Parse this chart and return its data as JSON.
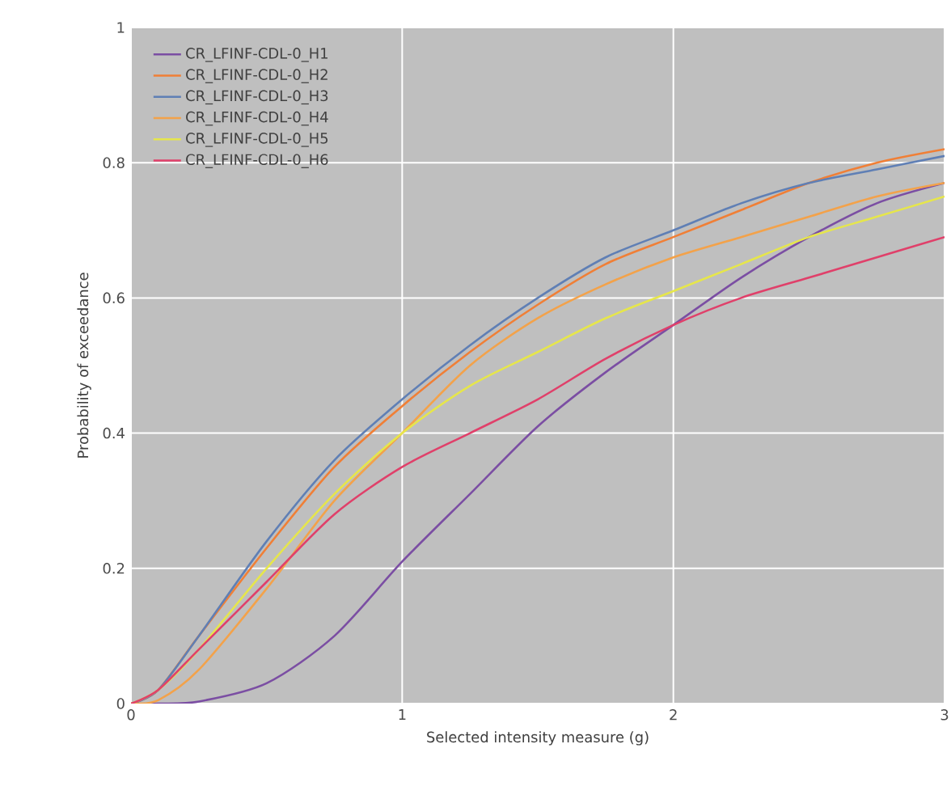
{
  "chart_data": {
    "type": "line",
    "xlabel": "Selected intensity measure (g)",
    "ylabel": "Probability of exceedance",
    "x": [
      0,
      0.1,
      0.25,
      0.5,
      0.75,
      1,
      1.25,
      1.5,
      1.75,
      2,
      2.25,
      2.5,
      2.75,
      3
    ],
    "series": [
      {
        "name": "CR_LFINF-CDL-0_H1",
        "color": "#7b4ea3",
        "values": [
          0,
          0,
          0.003,
          0.03,
          0.1,
          0.21,
          0.31,
          0.41,
          0.49,
          0.56,
          0.63,
          0.69,
          0.74,
          0.77
        ]
      },
      {
        "name": "CR_LFINF-CDL-0_H2",
        "color": "#f07f36",
        "values": [
          0,
          0.02,
          0.1,
          0.23,
          0.35,
          0.44,
          0.52,
          0.59,
          0.65,
          0.69,
          0.73,
          0.77,
          0.8,
          0.82
        ]
      },
      {
        "name": "CR_LFINF-CDL-0_H3",
        "color": "#5f7fb5",
        "values": [
          0,
          0.02,
          0.1,
          0.24,
          0.36,
          0.45,
          0.53,
          0.6,
          0.66,
          0.7,
          0.74,
          0.77,
          0.79,
          0.81
        ]
      },
      {
        "name": "CR_LFINF-CDL-0_H4",
        "color": "#f3a24a",
        "values": [
          0,
          0.005,
          0.05,
          0.17,
          0.3,
          0.4,
          0.5,
          0.57,
          0.62,
          0.66,
          0.69,
          0.72,
          0.75,
          0.77
        ]
      },
      {
        "name": "CR_LFINF-CDL-0_H5",
        "color": "#e6e64b",
        "values": [
          0,
          0.02,
          0.08,
          0.2,
          0.31,
          0.4,
          0.47,
          0.52,
          0.57,
          0.61,
          0.65,
          0.69,
          0.72,
          0.75
        ]
      },
      {
        "name": "CR_LFINF-CDL-0_H6",
        "color": "#e0406a",
        "values": [
          0,
          0.02,
          0.08,
          0.18,
          0.28,
          0.35,
          0.4,
          0.45,
          0.51,
          0.56,
          0.6,
          0.63,
          0.66,
          0.69
        ]
      }
    ],
    "xlim": [
      0,
      3
    ],
    "ylim": [
      0,
      1
    ],
    "xticks": [
      0,
      1,
      2,
      3
    ],
    "yticks": [
      0,
      0.2,
      0.4,
      0.6,
      0.8,
      1
    ],
    "grid": true,
    "legend": "top left",
    "marker": "none",
    "line_style": "solid"
  }
}
